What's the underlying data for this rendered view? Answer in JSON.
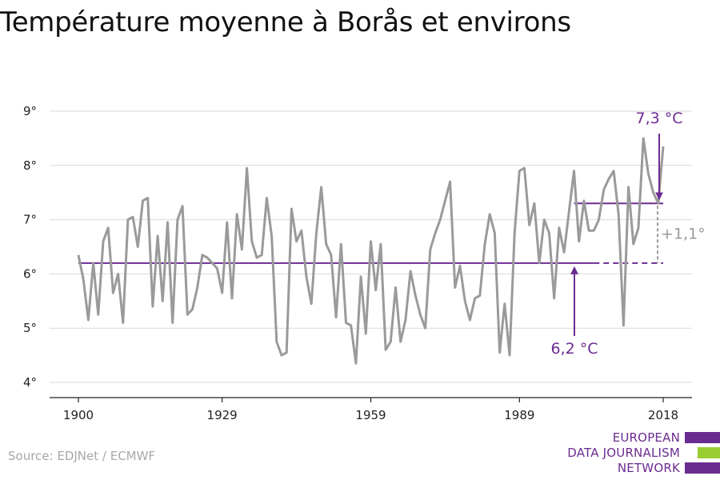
{
  "title": "Température moyenne à Borås et environs",
  "source": "Source: EDJNet / ECMWF",
  "logo": {
    "lines": [
      "EUROPEAN",
      "DATA JOURNALISM",
      "NETWORK"
    ],
    "colors": [
      "#6b2c91",
      "#9acd32",
      "#6b2c91"
    ]
  },
  "colors": {
    "line": "#9a9a9a",
    "accent": "#6b2c91",
    "grid": "#d9d9d9",
    "annotation_gray": "#9a9a9a"
  },
  "chart_data": {
    "type": "line",
    "title": "Température moyenne à Borås et environs",
    "xlabel": "",
    "ylabel": "",
    "xlim": [
      1900,
      2018
    ],
    "ylim": [
      4,
      9
    ],
    "x_ticks": [
      1900,
      1929,
      1959,
      1989,
      2018
    ],
    "y_ticks": [
      {
        "value": 4,
        "label": "4°"
      },
      {
        "value": 5,
        "label": "5°"
      },
      {
        "value": 6,
        "label": "6°"
      },
      {
        "value": 7,
        "label": "7°"
      },
      {
        "value": 8,
        "label": "8°"
      },
      {
        "value": 9,
        "label": "9°"
      }
    ],
    "grid": true,
    "series": [
      {
        "x": [
          1900,
          1901,
          1902,
          1903,
          1904,
          1905,
          1906,
          1907,
          1908,
          1909,
          1910,
          1911,
          1912,
          1913,
          1914,
          1915,
          1916,
          1917,
          1918,
          1919,
          1920,
          1921,
          1922,
          1923,
          1924,
          1925,
          1926,
          1927,
          1928,
          1929,
          1930,
          1931,
          1932,
          1933,
          1934,
          1935,
          1936,
          1937,
          1938,
          1939,
          1940,
          1941,
          1942,
          1943,
          1944,
          1945,
          1946,
          1947,
          1948,
          1949,
          1950,
          1951,
          1952,
          1953,
          1954,
          1955,
          1956,
          1957,
          1958,
          1959,
          1960,
          1961,
          1962,
          1963,
          1964,
          1965,
          1966,
          1967,
          1968,
          1969,
          1970,
          1971,
          1972,
          1973,
          1974,
          1975,
          1976,
          1977,
          1978,
          1979,
          1980,
          1981,
          1982,
          1983,
          1984,
          1985,
          1986,
          1987,
          1988,
          1989,
          1990,
          1991,
          1992,
          1993,
          1994,
          1995,
          1996,
          1997,
          1998,
          1999,
          2000,
          2001,
          2002,
          2003,
          2004,
          2005,
          2006,
          2007,
          2008,
          2009,
          2010,
          2011,
          2012,
          2013,
          2014,
          2015,
          2016,
          2017,
          2018
        ],
        "values": [
          6.35,
          5.9,
          5.15,
          6.2,
          5.25,
          6.6,
          6.85,
          5.65,
          6.0,
          5.1,
          7.0,
          7.05,
          6.5,
          7.35,
          7.4,
          5.4,
          6.7,
          5.5,
          6.95,
          5.1,
          7.0,
          7.25,
          5.25,
          5.35,
          5.75,
          6.35,
          6.3,
          6.2,
          6.1,
          5.65,
          6.95,
          5.55,
          7.1,
          6.45,
          7.95,
          6.6,
          6.3,
          6.35,
          7.4,
          6.7,
          4.75,
          4.5,
          4.55,
          7.2,
          6.6,
          6.8,
          5.95,
          5.45,
          6.75,
          7.6,
          6.55,
          6.35,
          5.2,
          6.55,
          5.1,
          5.05,
          4.35,
          5.95,
          4.9,
          6.6,
          5.7,
          6.55,
          4.6,
          4.75,
          5.75,
          4.75,
          5.15,
          6.05,
          5.6,
          5.25,
          5.0,
          6.45,
          6.75,
          7.0,
          7.35,
          7.7,
          5.75,
          6.15,
          5.5,
          5.15,
          5.55,
          5.6,
          6.55,
          7.1,
          6.75,
          4.55,
          5.45,
          4.5,
          6.75,
          7.9,
          7.95,
          6.9,
          7.3,
          6.2,
          7.0,
          6.75,
          5.55,
          6.85,
          6.4,
          7.15,
          7.9,
          6.6,
          7.35,
          6.8,
          6.8,
          7.0,
          7.55,
          7.75,
          7.9,
          7.1,
          5.05,
          7.6,
          6.55,
          6.85,
          8.5,
          7.85,
          7.5,
          7.3,
          8.35
        ]
      }
    ],
    "reference_lines": [
      {
        "from": 1900,
        "to": 2004,
        "value": 6.2,
        "style": "solid"
      },
      {
        "from": 2004,
        "to": 2018,
        "value": 6.2,
        "style": "dashed"
      },
      {
        "from": 2000,
        "to": 2018,
        "value": 7.3,
        "style": "solid"
      }
    ],
    "annotations": [
      {
        "text": "7,3 °C",
        "x": 2018,
        "y": 7.3
      },
      {
        "text": "6,2 °C",
        "x": 2003,
        "y": 6.2
      },
      {
        "text": "+1,1°",
        "x": 2018,
        "y": 6.75
      }
    ]
  }
}
